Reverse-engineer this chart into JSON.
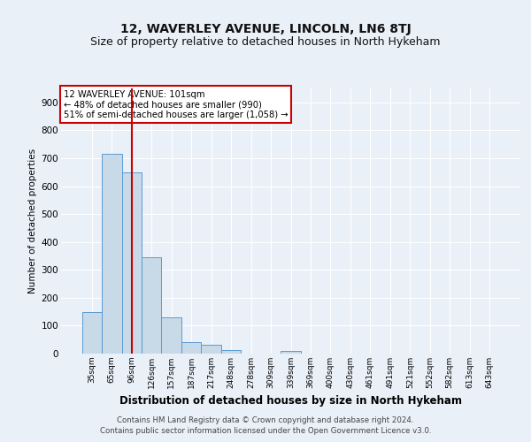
{
  "title1": "12, WAVERLEY AVENUE, LINCOLN, LN6 8TJ",
  "title2": "Size of property relative to detached houses in North Hykeham",
  "xlabel": "Distribution of detached houses by size in North Hykeham",
  "ylabel": "Number of detached properties",
  "footer1": "Contains HM Land Registry data © Crown copyright and database right 2024.",
  "footer2": "Contains public sector information licensed under the Open Government Licence v3.0.",
  "annotation_line1": "12 WAVERLEY AVENUE: 101sqm",
  "annotation_line2": "← 48% of detached houses are smaller (990)",
  "annotation_line3": "51% of semi-detached houses are larger (1,058) →",
  "bar_labels": [
    "35sqm",
    "65sqm",
    "96sqm",
    "126sqm",
    "157sqm",
    "187sqm",
    "217sqm",
    "248sqm",
    "278sqm",
    "309sqm",
    "339sqm",
    "369sqm",
    "400sqm",
    "430sqm",
    "461sqm",
    "491sqm",
    "521sqm",
    "552sqm",
    "582sqm",
    "613sqm",
    "643sqm"
  ],
  "bar_values": [
    150,
    715,
    650,
    345,
    130,
    42,
    32,
    13,
    0,
    0,
    10,
    0,
    0,
    0,
    0,
    0,
    0,
    0,
    0,
    0,
    0
  ],
  "bar_color": "#c8d9e8",
  "bar_edge_color": "#5b9bd5",
  "red_line_x": 2.0,
  "ylim": [
    0,
    950
  ],
  "yticks": [
    0,
    100,
    200,
    300,
    400,
    500,
    600,
    700,
    800,
    900
  ],
  "bg_color": "#eaf0f8",
  "plot_bg_color": "#eaf0f8",
  "grid_color": "#ffffff",
  "title1_fontsize": 10,
  "title2_fontsize": 9,
  "annotation_box_color": "#ffffff",
  "annotation_box_edge": "#cc0000"
}
